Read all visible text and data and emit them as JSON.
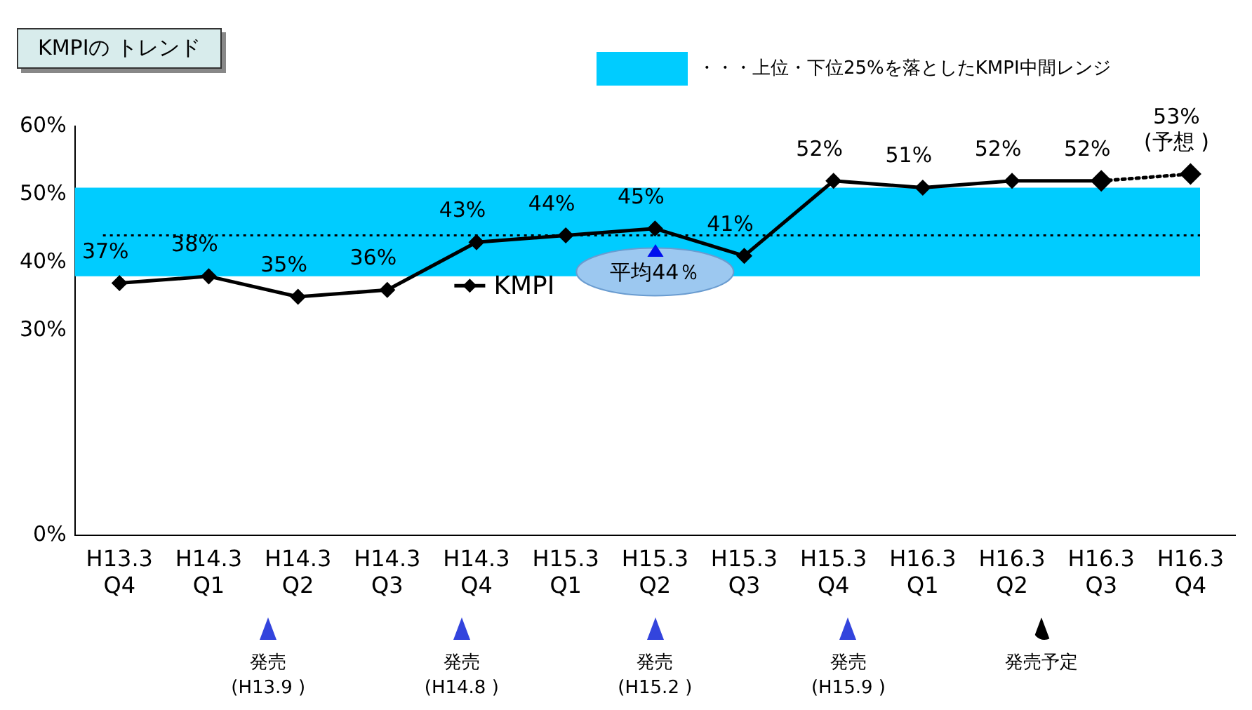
{
  "chart_data": {
    "type": "line",
    "title": "KMPIの トレンド",
    "categories": [
      "H13.3 Q4",
      "H14.3 Q1",
      "H14.3 Q2",
      "H14.3 Q3",
      "H14.3 Q4",
      "H15.3 Q1",
      "H15.3 Q2",
      "H15.3 Q3",
      "H15.3 Q4",
      "H16.3 Q1",
      "H16.3 Q2",
      "H16.3 Q3",
      "H16.3 Q4"
    ],
    "series": [
      {
        "name": "KMPI",
        "color": "#000000",
        "values": [
          37,
          38,
          35,
          36,
          43,
          44,
          45,
          41,
          52,
          51,
          52,
          52,
          null
        ],
        "value_labels": [
          "37%",
          "38%",
          "35%",
          "36%",
          "43%",
          "44%",
          "45%",
          "41%",
          "52%",
          "51%",
          "52%",
          "52%",
          null
        ],
        "line_style": "solid"
      },
      {
        "color": "#000000",
        "values": [
          null,
          null,
          null,
          null,
          null,
          null,
          null,
          null,
          null,
          null,
          null,
          52,
          53
        ],
        "value_labels": [
          null,
          null,
          null,
          null,
          null,
          null,
          null,
          null,
          null,
          null,
          null,
          null,
          "53%\n(予想 )"
        ],
        "line_style": "dotted"
      }
    ],
    "ylim": [
      0,
      60
    ],
    "yticks": [
      {
        "value": 0,
        "label": "0%"
      },
      {
        "value": 30,
        "label": "30%"
      },
      {
        "value": 40,
        "label": "40%"
      },
      {
        "value": 50,
        "label": "50%"
      },
      {
        "value": 60,
        "label": "60%"
      }
    ],
    "marker": "diamond",
    "grid": false,
    "legend": "top right",
    "bands": [
      {
        "axis": "y",
        "from": 38,
        "to": 51,
        "label": "・・・上位・下位25%を落としたKMPI中間レンジ",
        "color": "#00ccff"
      }
    ],
    "ref_lines": [
      {
        "axis": "y",
        "value": 44,
        "label": "平均44％",
        "line_style": "dotted",
        "color": "#000000"
      }
    ],
    "annotations": [
      "発売\n(H13.9 )",
      "発売\n(H14.8 )",
      "発売\n(H15.2 )",
      "発売\n(H15.9 )",
      "発売予定"
    ]
  }
}
